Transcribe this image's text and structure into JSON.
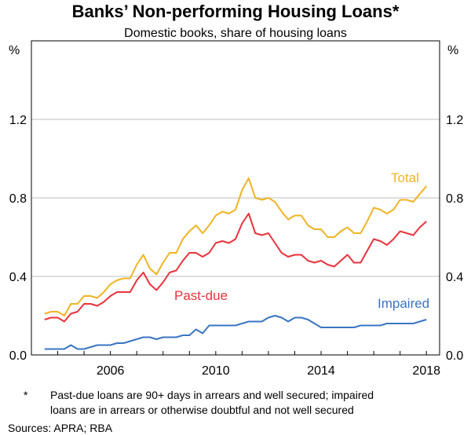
{
  "chart_data": {
    "type": "line",
    "title": "Banks’ Non-performing Housing Loans*",
    "subtitle": "Domestic books, share of housing loans",
    "y_unit_left": "%",
    "y_unit_right": "%",
    "xlim": [
      2003.0,
      2018.5
    ],
    "ylim": [
      0,
      1.6
    ],
    "x_ticks": [
      2006,
      2010,
      2014,
      2018
    ],
    "x_tick_labels": [
      "2006",
      "2010",
      "2014",
      "2018"
    ],
    "y_ticks": [
      0.0,
      0.4,
      0.8,
      1.2
    ],
    "y_tick_labels": [
      "0.0",
      "0.4",
      "0.8",
      "1.2"
    ],
    "grid": "horizontal",
    "series": [
      {
        "name": "Total",
        "color": "#f0b323",
        "x": [
          2003.5,
          2003.75,
          2004.0,
          2004.25,
          2004.5,
          2004.75,
          2005.0,
          2005.25,
          2005.5,
          2005.75,
          2006.0,
          2006.25,
          2006.5,
          2006.75,
          2007.0,
          2007.25,
          2007.5,
          2007.75,
          2008.0,
          2008.25,
          2008.5,
          2008.75,
          2009.0,
          2009.25,
          2009.5,
          2009.75,
          2010.0,
          2010.25,
          2010.5,
          2010.75,
          2011.0,
          2011.25,
          2011.5,
          2011.75,
          2012.0,
          2012.25,
          2012.5,
          2012.75,
          2013.0,
          2013.25,
          2013.5,
          2013.75,
          2014.0,
          2014.25,
          2014.5,
          2014.75,
          2015.0,
          2015.25,
          2015.5,
          2015.75,
          2016.0,
          2016.25,
          2016.5,
          2016.75,
          2017.0,
          2017.25,
          2017.5,
          2017.75,
          2018.0
        ],
        "values": [
          0.21,
          0.22,
          0.22,
          0.2,
          0.26,
          0.26,
          0.3,
          0.3,
          0.29,
          0.32,
          0.36,
          0.38,
          0.39,
          0.39,
          0.46,
          0.51,
          0.44,
          0.41,
          0.47,
          0.52,
          0.52,
          0.59,
          0.63,
          0.66,
          0.62,
          0.66,
          0.71,
          0.73,
          0.72,
          0.74,
          0.84,
          0.9,
          0.8,
          0.79,
          0.8,
          0.78,
          0.73,
          0.69,
          0.71,
          0.71,
          0.66,
          0.64,
          0.64,
          0.6,
          0.6,
          0.63,
          0.65,
          0.62,
          0.62,
          0.68,
          0.75,
          0.74,
          0.72,
          0.74,
          0.79,
          0.79,
          0.78,
          0.82,
          0.86
        ]
      },
      {
        "name": "Past-due",
        "color": "#e8323c",
        "x": [
          2003.5,
          2003.75,
          2004.0,
          2004.25,
          2004.5,
          2004.75,
          2005.0,
          2005.25,
          2005.5,
          2005.75,
          2006.0,
          2006.25,
          2006.5,
          2006.75,
          2007.0,
          2007.25,
          2007.5,
          2007.75,
          2008.0,
          2008.25,
          2008.5,
          2008.75,
          2009.0,
          2009.25,
          2009.5,
          2009.75,
          2010.0,
          2010.25,
          2010.5,
          2010.75,
          2011.0,
          2011.25,
          2011.5,
          2011.75,
          2012.0,
          2012.25,
          2012.5,
          2012.75,
          2013.0,
          2013.25,
          2013.5,
          2013.75,
          2014.0,
          2014.25,
          2014.5,
          2014.75,
          2015.0,
          2015.25,
          2015.5,
          2015.75,
          2016.0,
          2016.25,
          2016.5,
          2016.75,
          2017.0,
          2017.25,
          2017.5,
          2017.75,
          2018.0
        ],
        "values": [
          0.18,
          0.19,
          0.19,
          0.17,
          0.21,
          0.22,
          0.26,
          0.26,
          0.25,
          0.27,
          0.3,
          0.32,
          0.32,
          0.32,
          0.38,
          0.42,
          0.36,
          0.33,
          0.37,
          0.42,
          0.43,
          0.48,
          0.52,
          0.52,
          0.5,
          0.52,
          0.57,
          0.58,
          0.57,
          0.59,
          0.67,
          0.72,
          0.62,
          0.61,
          0.62,
          0.57,
          0.52,
          0.5,
          0.51,
          0.51,
          0.48,
          0.47,
          0.48,
          0.46,
          0.45,
          0.48,
          0.51,
          0.47,
          0.47,
          0.53,
          0.59,
          0.58,
          0.56,
          0.59,
          0.63,
          0.62,
          0.61,
          0.65,
          0.68
        ]
      },
      {
        "name": "Impaired",
        "color": "#3a75c4",
        "x": [
          2003.5,
          2003.75,
          2004.0,
          2004.25,
          2004.5,
          2004.75,
          2005.0,
          2005.25,
          2005.5,
          2005.75,
          2006.0,
          2006.25,
          2006.5,
          2006.75,
          2007.0,
          2007.25,
          2007.5,
          2007.75,
          2008.0,
          2008.25,
          2008.5,
          2008.75,
          2009.0,
          2009.25,
          2009.5,
          2009.75,
          2010.0,
          2010.25,
          2010.5,
          2010.75,
          2011.0,
          2011.25,
          2011.5,
          2011.75,
          2012.0,
          2012.25,
          2012.5,
          2012.75,
          2013.0,
          2013.25,
          2013.5,
          2013.75,
          2014.0,
          2014.25,
          2014.5,
          2014.75,
          2015.0,
          2015.25,
          2015.5,
          2015.75,
          2016.0,
          2016.25,
          2016.5,
          2016.75,
          2017.0,
          2017.25,
          2017.5,
          2017.75,
          2018.0
        ],
        "values": [
          0.03,
          0.03,
          0.03,
          0.03,
          0.05,
          0.03,
          0.03,
          0.04,
          0.05,
          0.05,
          0.05,
          0.06,
          0.06,
          0.07,
          0.08,
          0.09,
          0.09,
          0.08,
          0.09,
          0.09,
          0.09,
          0.1,
          0.1,
          0.13,
          0.11,
          0.15,
          0.15,
          0.15,
          0.15,
          0.15,
          0.16,
          0.17,
          0.17,
          0.17,
          0.19,
          0.2,
          0.19,
          0.17,
          0.19,
          0.19,
          0.18,
          0.16,
          0.14,
          0.14,
          0.14,
          0.14,
          0.14,
          0.14,
          0.15,
          0.15,
          0.15,
          0.15,
          0.16,
          0.16,
          0.16,
          0.16,
          0.16,
          0.17,
          0.18
        ]
      }
    ],
    "notes": {
      "marker": "*",
      "line1": "Past-due loans are 90+ days in arrears and well secured; impaired",
      "line2": "loans are in arrears or otherwise doubtful and not well secured"
    },
    "source": "Sources: APRA; RBA"
  }
}
